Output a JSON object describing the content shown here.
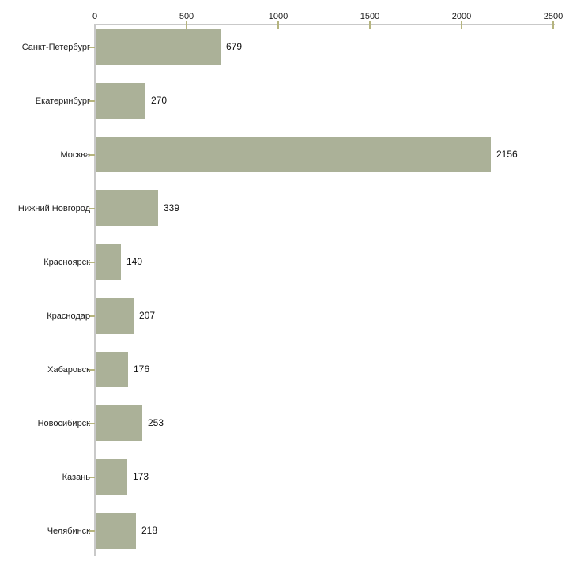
{
  "chart_data": {
    "type": "bar",
    "orientation": "horizontal",
    "title": "",
    "xlabel": "",
    "ylabel": "",
    "categories": [
      "Санкт-Петербург",
      "Екатеринбург",
      "Москва",
      "Нижний Новгород",
      "Красноярск",
      "Краснодар",
      "Хабаровск",
      "Новосибирск",
      "Казань",
      "Челябинск"
    ],
    "values": [
      679,
      270,
      2156,
      339,
      140,
      207,
      176,
      253,
      173,
      218
    ],
    "x_ticks": [
      0,
      500,
      1000,
      1500,
      2000,
      2500
    ],
    "xlim": [
      0,
      2500
    ],
    "grid": "off",
    "legend": "none",
    "axis_position": "top",
    "colors": {
      "bar": "#abb198",
      "axis_line": "#c9c9c9",
      "tick": "#b5b47e",
      "text": "#1c1c1c",
      "background": "#ffffff"
    }
  }
}
